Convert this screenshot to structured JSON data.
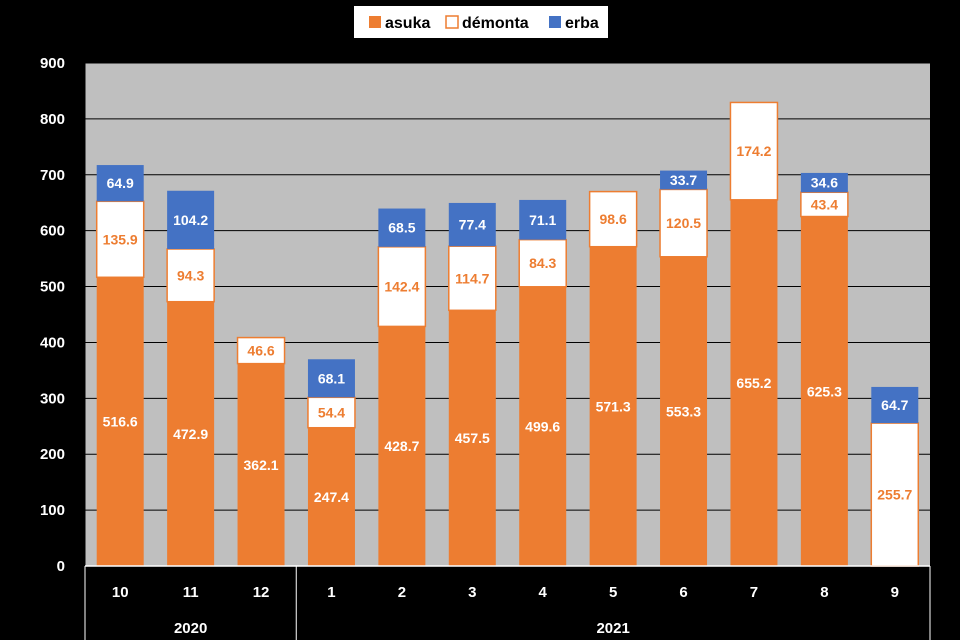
{
  "chart_data": {
    "type": "bar",
    "stacked": true,
    "categories": [
      "10",
      "11",
      "12",
      "1",
      "2",
      "3",
      "4",
      "5",
      "6",
      "7",
      "8",
      "9"
    ],
    "year_groups": [
      {
        "label": "2020",
        "count": 3
      },
      {
        "label": "2021",
        "count": 9
      }
    ],
    "series": [
      {
        "name": "asuka",
        "color": "#ED7D31",
        "label_color": "#FFFFFF",
        "values": [
          516.6,
          472.9,
          362.1,
          247.4,
          428.7,
          457.5,
          499.6,
          571.3,
          553.3,
          655.2,
          625.3,
          null
        ]
      },
      {
        "name": "démonta",
        "color": "#FFFFFF",
        "border_color": "#ED7D31",
        "label_color": "#ED7D31",
        "values": [
          135.9,
          94.3,
          46.6,
          54.4,
          142.4,
          114.7,
          84.3,
          98.6,
          120.5,
          174.2,
          43.4,
          255.7
        ]
      },
      {
        "name": "erba",
        "color": "#4472C4",
        "label_color": "#FFFFFF",
        "values": [
          64.9,
          104.2,
          null,
          68.1,
          68.5,
          77.4,
          71.1,
          null,
          33.7,
          null,
          34.6,
          64.7
        ]
      }
    ],
    "y_ticks": [
      "0",
      "100",
      "200",
      "300",
      "400",
      "500",
      "600",
      "700",
      "800",
      "900"
    ],
    "ylim": [
      0,
      900
    ],
    "grid": true,
    "legend_position": "top"
  }
}
